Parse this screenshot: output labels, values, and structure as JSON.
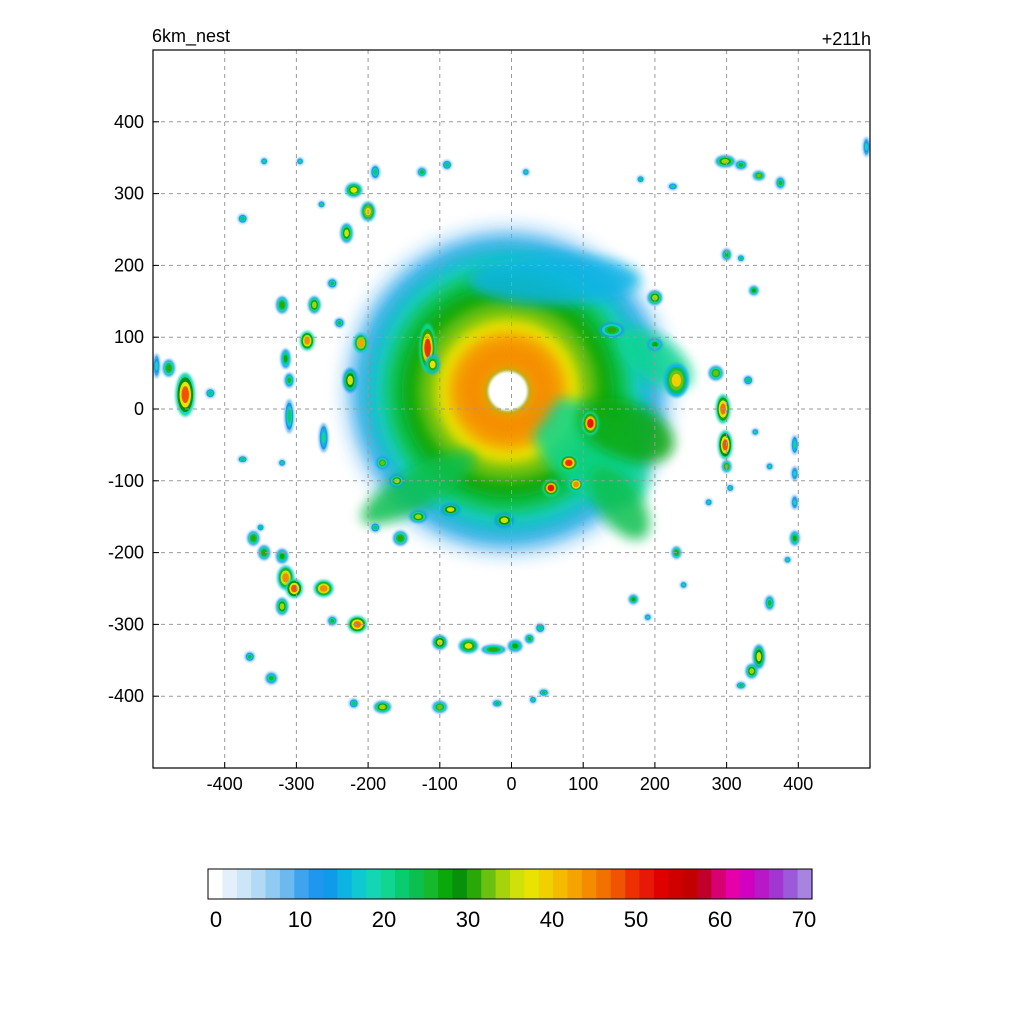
{
  "chart_data": {
    "type": "heatmap",
    "title_left": "6km_nest",
    "title_right": "+211h",
    "xlim": [
      -500,
      500
    ],
    "ylim": [
      -500,
      500
    ],
    "xticks": [
      -400,
      -300,
      -200,
      -100,
      0,
      100,
      200,
      300,
      400
    ],
    "yticks": [
      -400,
      -300,
      -200,
      -100,
      0,
      100,
      200,
      300,
      400
    ],
    "grid": true,
    "colorbar": {
      "min": 0,
      "max": 70,
      "ticks": [
        0,
        10,
        20,
        30,
        40,
        50,
        60,
        70
      ],
      "colors": [
        "#ffffff",
        "#e3f0fb",
        "#cce6f8",
        "#b3daf5",
        "#8fcaf2",
        "#6bb9ef",
        "#3ea4f0",
        "#1f96f0",
        "#0f9bea",
        "#0cb4e4",
        "#10c8d2",
        "#14d6b4",
        "#10d690",
        "#08cc6e",
        "#0cc050",
        "#16b82c",
        "#0aa80a",
        "#08900a",
        "#2aa808",
        "#6cc010",
        "#a6d40a",
        "#cfe00a",
        "#eae200",
        "#f0d000",
        "#f4bb00",
        "#f5a300",
        "#f58c00",
        "#f27200",
        "#f05400",
        "#ee3000",
        "#e81808",
        "#e00000",
        "#d00000",
        "#c20000",
        "#c0002a",
        "#d80070",
        "#e600aa",
        "#d200c0",
        "#b818c8",
        "#a236d0",
        "#9c5ad8",
        "#a684e0"
      ]
    },
    "storm": {
      "center": [
        -5,
        25
      ],
      "eye_radius": 30,
      "inner_ring_radius": 62,
      "core_peak": 45
    },
    "cells": [
      [
        -455,
        20,
        48,
        8,
        18
      ],
      [
        -478,
        57,
        30,
        5,
        7
      ],
      [
        -420,
        22,
        22,
        4,
        4
      ],
      [
        -117,
        85,
        50,
        7,
        20
      ],
      [
        -110,
        62,
        38,
        6,
        8
      ],
      [
        -210,
        92,
        42,
        6,
        8
      ],
      [
        -285,
        95,
        45,
        6,
        8
      ],
      [
        -225,
        40,
        36,
        6,
        10
      ],
      [
        -200,
        275,
        40,
        6,
        8
      ],
      [
        -220,
        305,
        38,
        7,
        6
      ],
      [
        -190,
        330,
        22,
        4,
        6
      ],
      [
        -230,
        245,
        35,
        5,
        8
      ],
      [
        -125,
        330,
        25,
        4,
        4
      ],
      [
        -90,
        340,
        22,
        4,
        4
      ],
      [
        20,
        330,
        18,
        3,
        3
      ],
      [
        -320,
        145,
        30,
        5,
        7
      ],
      [
        -275,
        145,
        34,
        5,
        7
      ],
      [
        -315,
        70,
        28,
        4,
        8
      ],
      [
        -310,
        40,
        26,
        4,
        6
      ],
      [
        -250,
        175,
        24,
        4,
        4
      ],
      [
        -295,
        345,
        18,
        3,
        3
      ],
      [
        -375,
        265,
        22,
        4,
        4
      ],
      [
        -345,
        345,
        20,
        3,
        3
      ],
      [
        -265,
        285,
        20,
        3,
        3
      ],
      [
        -240,
        120,
        24,
        4,
        4
      ],
      [
        -310,
        -10,
        22,
        4,
        14
      ],
      [
        -262,
        -40,
        20,
        4,
        12
      ],
      [
        -315,
        -235,
        44,
        7,
        10
      ],
      [
        -303,
        -250,
        48,
        7,
        8
      ],
      [
        -262,
        -250,
        44,
        8,
        7
      ],
      [
        -215,
        -300,
        46,
        8,
        7
      ],
      [
        -320,
        -275,
        34,
        5,
        7
      ],
      [
        -345,
        -200,
        30,
        5,
        6
      ],
      [
        -360,
        -180,
        30,
        5,
        6
      ],
      [
        -350,
        -165,
        22,
        3,
        3
      ],
      [
        -320,
        -205,
        28,
        5,
        6
      ],
      [
        -250,
        -295,
        26,
        4,
        4
      ],
      [
        -365,
        -345,
        24,
        4,
        4
      ],
      [
        -335,
        -375,
        26,
        5,
        5
      ],
      [
        -220,
        -410,
        22,
        4,
        4
      ],
      [
        -180,
        -415,
        34,
        7,
        5
      ],
      [
        -100,
        -325,
        36,
        6,
        6
      ],
      [
        -100,
        -415,
        32,
        6,
        5
      ],
      [
        -60,
        -330,
        38,
        8,
        6
      ],
      [
        -25,
        -335,
        30,
        10,
        4
      ],
      [
        5,
        -330,
        28,
        6,
        5
      ],
      [
        25,
        -320,
        26,
        4,
        4
      ],
      [
        40,
        -305,
        22,
        4,
        4
      ],
      [
        -20,
        -410,
        24,
        4,
        3
      ],
      [
        45,
        -395,
        24,
        4,
        3
      ],
      [
        30,
        -405,
        20,
        3,
        3
      ],
      [
        -155,
        -180,
        30,
        6,
        6
      ],
      [
        -190,
        -165,
        22,
        4,
        4
      ],
      [
        -320,
        -75,
        20,
        3,
        3
      ],
      [
        -375,
        -70,
        22,
        4,
        3
      ],
      [
        110,
        -20,
        52,
        7,
        10
      ],
      [
        80,
        -75,
        50,
        8,
        7
      ],
      [
        55,
        -110,
        52,
        7,
        7
      ],
      [
        90,
        -105,
        44,
        6,
        6
      ],
      [
        -10,
        -155,
        36,
        8,
        6
      ],
      [
        -160,
        -100,
        34,
        6,
        5
      ],
      [
        -180,
        -75,
        32,
        5,
        5
      ],
      [
        -130,
        -150,
        34,
        7,
        5
      ],
      [
        -85,
        -140,
        36,
        8,
        5
      ],
      [
        295,
        0,
        46,
        6,
        12
      ],
      [
        298,
        -50,
        48,
        6,
        12
      ],
      [
        300,
        -80,
        32,
        4,
        5
      ],
      [
        285,
        50,
        32,
        6,
        6
      ],
      [
        330,
        40,
        22,
        4,
        4
      ],
      [
        340,
        -32,
        18,
        3,
        3
      ],
      [
        360,
        -80,
        18,
        3,
        3
      ],
      [
        395,
        -50,
        20,
        3,
        8
      ],
      [
        395,
        -90,
        18,
        3,
        6
      ],
      [
        395,
        -130,
        18,
        3,
        6
      ],
      [
        395,
        -180,
        28,
        4,
        6
      ],
      [
        385,
        -210,
        18,
        3,
        3
      ],
      [
        230,
        -200,
        30,
        4,
        5
      ],
      [
        305,
        -110,
        20,
        3,
        3
      ],
      [
        275,
        -130,
        20,
        3,
        3
      ],
      [
        170,
        -265,
        28,
        4,
        4
      ],
      [
        190,
        -290,
        18,
        3,
        3
      ],
      [
        240,
        -245,
        18,
        3,
        3
      ],
      [
        360,
        -270,
        26,
        4,
        6
      ],
      [
        345,
        -345,
        36,
        5,
        10
      ],
      [
        335,
        -365,
        34,
        5,
        6
      ],
      [
        320,
        -385,
        24,
        4,
        3
      ],
      [
        298,
        345,
        34,
        8,
        5
      ],
      [
        320,
        340,
        26,
        5,
        4
      ],
      [
        345,
        325,
        32,
        5,
        4
      ],
      [
        375,
        315,
        26,
        4,
        5
      ],
      [
        225,
        310,
        20,
        4,
        3
      ],
      [
        180,
        320,
        22,
        3,
        3
      ],
      [
        200,
        155,
        34,
        6,
        6
      ],
      [
        300,
        215,
        26,
        4,
        5
      ],
      [
        320,
        210,
        22,
        3,
        3
      ],
      [
        338,
        165,
        28,
        4,
        4
      ],
      [
        495,
        365,
        18,
        3,
        8
      ],
      [
        -495,
        60,
        18,
        3,
        10
      ],
      [
        200,
        90,
        28,
        6,
        5
      ],
      [
        140,
        110,
        30,
        10,
        6
      ],
      [
        230,
        40,
        40,
        10,
        14
      ]
    ]
  }
}
